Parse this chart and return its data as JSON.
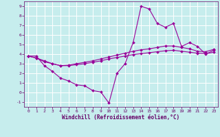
{
  "xlabel": "Windchill (Refroidissement éolien,°C)",
  "background_color": "#c6eded",
  "grid_color": "#ffffff",
  "line_color": "#990099",
  "tick_color": "#660066",
  "xlim": [
    -0.5,
    23.5
  ],
  "ylim": [
    -1.5,
    9.5
  ],
  "xticks": [
    0,
    1,
    2,
    3,
    4,
    5,
    6,
    7,
    8,
    9,
    10,
    11,
    12,
    13,
    14,
    15,
    16,
    17,
    18,
    19,
    20,
    21,
    22,
    23
  ],
  "yticks": [
    -1,
    0,
    1,
    2,
    3,
    4,
    5,
    6,
    7,
    8,
    9
  ],
  "line1_x": [
    0,
    1,
    2,
    3,
    4,
    5,
    6,
    7,
    8,
    9,
    10,
    11,
    12,
    13,
    14,
    15,
    16,
    17,
    18,
    19,
    20,
    21,
    22,
    23
  ],
  "line1_y": [
    3.8,
    3.8,
    2.8,
    2.2,
    1.5,
    1.2,
    0.8,
    0.7,
    0.2,
    0.05,
    -1.1,
    2.0,
    3.0,
    5.2,
    9.0,
    8.7,
    7.2,
    6.8,
    7.2,
    4.8,
    5.2,
    4.8,
    4.0,
    4.4
  ],
  "line2_x": [
    0,
    1,
    2,
    3,
    4,
    5,
    6,
    7,
    8,
    9,
    10,
    11,
    12,
    13,
    14,
    15,
    16,
    17,
    18,
    19,
    20,
    21,
    22,
    23
  ],
  "line2_y": [
    3.8,
    3.6,
    3.3,
    3.0,
    2.8,
    2.85,
    3.0,
    3.15,
    3.3,
    3.5,
    3.7,
    3.9,
    4.1,
    4.3,
    4.45,
    4.55,
    4.7,
    4.85,
    4.85,
    4.7,
    4.55,
    4.3,
    4.25,
    4.5
  ],
  "line3_x": [
    0,
    1,
    2,
    3,
    4,
    5,
    6,
    7,
    8,
    9,
    10,
    11,
    12,
    13,
    14,
    15,
    16,
    17,
    18,
    19,
    20,
    21,
    22,
    23
  ],
  "line3_y": [
    3.8,
    3.6,
    3.2,
    3.0,
    2.8,
    2.8,
    2.9,
    3.0,
    3.15,
    3.3,
    3.5,
    3.65,
    3.8,
    3.95,
    4.05,
    4.15,
    4.25,
    4.35,
    4.4,
    4.3,
    4.2,
    4.1,
    4.05,
    4.2
  ]
}
